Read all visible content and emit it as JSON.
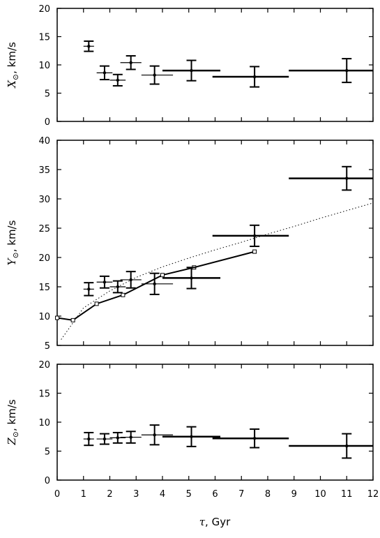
{
  "chart_data": [
    {
      "type": "scatter",
      "panel": "top",
      "ylabel_sym": "X",
      "ylabel_unit": ", km/s",
      "ylim": [
        0,
        20
      ],
      "yticks": [
        0,
        5,
        10,
        15,
        20
      ],
      "xlim": [
        0,
        12
      ],
      "xticks": [],
      "series": [
        {
          "points": [
            {
              "x": 1.2,
              "y": 13.3,
              "yerr": 0.9,
              "xmin": 1.0,
              "xmax": 1.4
            },
            {
              "x": 1.8,
              "y": 8.6,
              "yerr": 1.2,
              "xmin": 1.5,
              "xmax": 2.1
            },
            {
              "x": 2.3,
              "y": 7.3,
              "yerr": 1.0,
              "xmin": 2.0,
              "xmax": 2.6
            },
            {
              "x": 2.8,
              "y": 10.4,
              "yerr": 1.2,
              "xmin": 2.4,
              "xmax": 3.2
            },
            {
              "x": 3.7,
              "y": 8.2,
              "yerr": 1.6,
              "xmin": 3.2,
              "xmax": 4.4
            },
            {
              "x": 5.1,
              "y": 9.0,
              "yerr": 1.8,
              "xmin": 4.0,
              "xmax": 6.2
            },
            {
              "x": 7.5,
              "y": 7.9,
              "yerr": 1.8,
              "xmin": 5.9,
              "xmax": 8.8
            },
            {
              "x": 11.0,
              "y": 9.0,
              "yerr": 2.1,
              "xmin": 8.8,
              "xmax": 12.0
            }
          ]
        }
      ]
    },
    {
      "type": "scatter",
      "panel": "middle",
      "ylabel_sym": "Y",
      "ylabel_unit": ", km/s",
      "ylim": [
        5,
        40
      ],
      "yticks": [
        5,
        10,
        15,
        20,
        25,
        30,
        35,
        40
      ],
      "xlim": [
        0,
        12
      ],
      "xticks": [],
      "series": [
        {
          "points": [
            {
              "x": 1.2,
              "y": 14.6,
              "yerr": 1.1,
              "xmin": 1.0,
              "xmax": 1.4
            },
            {
              "x": 1.8,
              "y": 15.8,
              "yerr": 1.0,
              "xmin": 1.5,
              "xmax": 2.1
            },
            {
              "x": 2.3,
              "y": 15.0,
              "yerr": 1.0,
              "xmin": 2.0,
              "xmax": 2.6
            },
            {
              "x": 2.8,
              "y": 16.2,
              "yerr": 1.4,
              "xmin": 2.4,
              "xmax": 3.2
            },
            {
              "x": 3.7,
              "y": 15.5,
              "yerr": 1.8,
              "xmin": 3.2,
              "xmax": 4.4
            },
            {
              "x": 5.1,
              "y": 16.5,
              "yerr": 1.8,
              "xmin": 4.0,
              "xmax": 6.2
            },
            {
              "x": 7.5,
              "y": 23.7,
              "yerr": 1.8,
              "xmin": 5.9,
              "xmax": 8.8
            },
            {
              "x": 11.0,
              "y": 33.5,
              "yerr": 2.0,
              "xmin": 8.8,
              "xmax": 12.0
            }
          ]
        }
      ],
      "model_line": [
        [
          0,
          9.7
        ],
        [
          0.6,
          9.3
        ],
        [
          1.5,
          12.1
        ],
        [
          2.5,
          13.6
        ],
        [
          4.0,
          17.0
        ],
        [
          5.2,
          18.3
        ],
        [
          7.5,
          21.0
        ]
      ],
      "dotted_curve": [
        [
          0.15,
          6.0
        ],
        [
          1.0,
          11.4
        ],
        [
          2.0,
          14.3
        ],
        [
          3.0,
          16.6
        ],
        [
          4.0,
          18.4
        ],
        [
          5.0,
          19.9
        ],
        [
          6.0,
          21.3
        ],
        [
          7.0,
          22.6
        ],
        [
          8.0,
          24.0
        ],
        [
          9.0,
          25.3
        ],
        [
          10.0,
          26.7
        ],
        [
          11.0,
          28.0
        ],
        [
          12.0,
          29.3
        ]
      ]
    },
    {
      "type": "scatter",
      "panel": "bottom",
      "ylabel_sym": "Z",
      "ylabel_unit": ", km/s",
      "ylim": [
        0,
        20
      ],
      "yticks": [
        0,
        5,
        10,
        15,
        20
      ],
      "xlim": [
        0,
        12
      ],
      "xticks": [
        0,
        1,
        2,
        3,
        4,
        5,
        6,
        7,
        8,
        9,
        10,
        11,
        12
      ],
      "xlabel_sym": "τ",
      "xlabel_unit": ",  Gyr",
      "series": [
        {
          "points": [
            {
              "x": 1.2,
              "y": 7.1,
              "yerr": 1.1,
              "xmin": 1.0,
              "xmax": 1.4
            },
            {
              "x": 1.8,
              "y": 7.1,
              "yerr": 0.9,
              "xmin": 1.5,
              "xmax": 2.1
            },
            {
              "x": 2.3,
              "y": 7.3,
              "yerr": 0.9,
              "xmin": 2.0,
              "xmax": 2.6
            },
            {
              "x": 2.8,
              "y": 7.4,
              "yerr": 1.0,
              "xmin": 2.4,
              "xmax": 3.2
            },
            {
              "x": 3.7,
              "y": 7.8,
              "yerr": 1.7,
              "xmin": 3.2,
              "xmax": 4.4
            },
            {
              "x": 5.1,
              "y": 7.5,
              "yerr": 1.7,
              "xmin": 4.0,
              "xmax": 6.2
            },
            {
              "x": 7.5,
              "y": 7.2,
              "yerr": 1.6,
              "xmin": 5.9,
              "xmax": 8.8
            },
            {
              "x": 11.0,
              "y": 5.9,
              "yerr": 2.1,
              "xmin": 8.8,
              "xmax": 12.0
            }
          ]
        }
      ]
    }
  ]
}
